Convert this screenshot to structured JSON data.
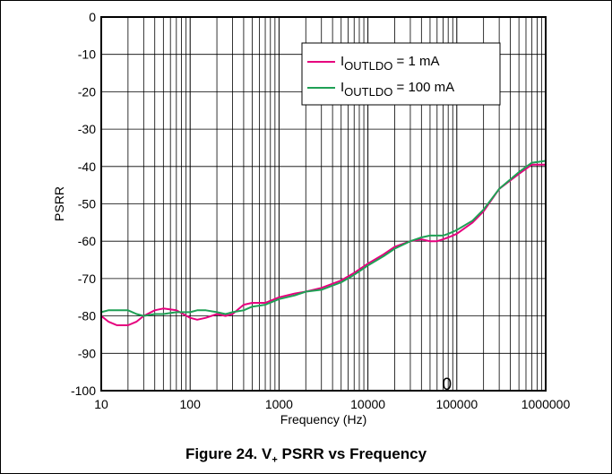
{
  "caption": {
    "prefix": "Figure 24. V",
    "subscript": "+",
    "suffix": " PSRR vs Frequency"
  },
  "chart_data": {
    "type": "line",
    "xlabel": "Frequency (Hz)",
    "ylabel": "PSRR",
    "xscale": "log",
    "xlim": [
      10,
      1000000
    ],
    "ylim": [
      -100,
      0
    ],
    "x_ticks": [
      10,
      100,
      1000,
      10000,
      100000,
      1000000
    ],
    "x_tick_labels": [
      "10",
      "100",
      "1000",
      "10000",
      "100000",
      "1000000"
    ],
    "y_ticks": [
      0,
      -10,
      -20,
      -30,
      -40,
      -50,
      -60,
      -70,
      -80,
      -90,
      -100
    ],
    "y_tick_labels": [
      "0",
      "-10",
      "-20",
      "-30",
      "-40",
      "-50",
      "-60",
      "-70",
      "-80",
      "-90",
      "-100"
    ],
    "grid": "vertical log gridlines, horizontal gridlines every 10",
    "legend_position": "top-right",
    "annotation": "0",
    "series": [
      {
        "legend_main": "I",
        "legend_sub": "OUTLDO",
        "legend_tail": " = 1 mA",
        "color": "#e6007e",
        "x": [
          10,
          12,
          15,
          20,
          25,
          30,
          40,
          50,
          70,
          100,
          120,
          150,
          200,
          250,
          300,
          400,
          500,
          700,
          1000,
          1500,
          2000,
          3000,
          5000,
          7000,
          10000,
          15000,
          20000,
          30000,
          40000,
          50000,
          60000,
          70000,
          80000,
          90000,
          100000,
          150000,
          200000,
          300000,
          500000,
          700000,
          1000000
        ],
        "values": [
          -80,
          -81.5,
          -82.5,
          -82.5,
          -81.5,
          -80,
          -78.5,
          -78,
          -78.5,
          -80.5,
          -81,
          -80.5,
          -79.5,
          -80,
          -79.5,
          -77,
          -76.5,
          -76.5,
          -75,
          -74,
          -73.5,
          -72.5,
          -70.5,
          -68.5,
          -66,
          -63.5,
          -61.5,
          -60,
          -59.5,
          -60,
          -60,
          -59.5,
          -59,
          -58.5,
          -58,
          -55,
          -52,
          -46,
          -42,
          -39.5,
          -39.5
        ]
      },
      {
        "legend_main": "I",
        "legend_sub": "OUTLDO",
        "legend_tail": " = 100  mA",
        "color": "#1fa055",
        "x": [
          10,
          12,
          15,
          20,
          25,
          30,
          40,
          50,
          70,
          100,
          120,
          150,
          200,
          250,
          300,
          400,
          500,
          700,
          1000,
          1500,
          2000,
          3000,
          5000,
          7000,
          10000,
          15000,
          20000,
          30000,
          40000,
          50000,
          60000,
          70000,
          80000,
          90000,
          100000,
          150000,
          200000,
          300000,
          500000,
          700000,
          1000000
        ],
        "values": [
          -79,
          -78.5,
          -78.5,
          -78.5,
          -79.5,
          -80,
          -79.5,
          -79.5,
          -79,
          -79,
          -78.5,
          -78.5,
          -79,
          -79.5,
          -79,
          -78.5,
          -77.5,
          -77,
          -75.5,
          -74.5,
          -73.5,
          -73,
          -71,
          -69,
          -66.5,
          -64,
          -62,
          -60,
          -59,
          -58.5,
          -58.5,
          -58.5,
          -58,
          -57.5,
          -57,
          -54.5,
          -51.5,
          -46,
          -41.5,
          -39,
          -38.5
        ]
      }
    ]
  }
}
